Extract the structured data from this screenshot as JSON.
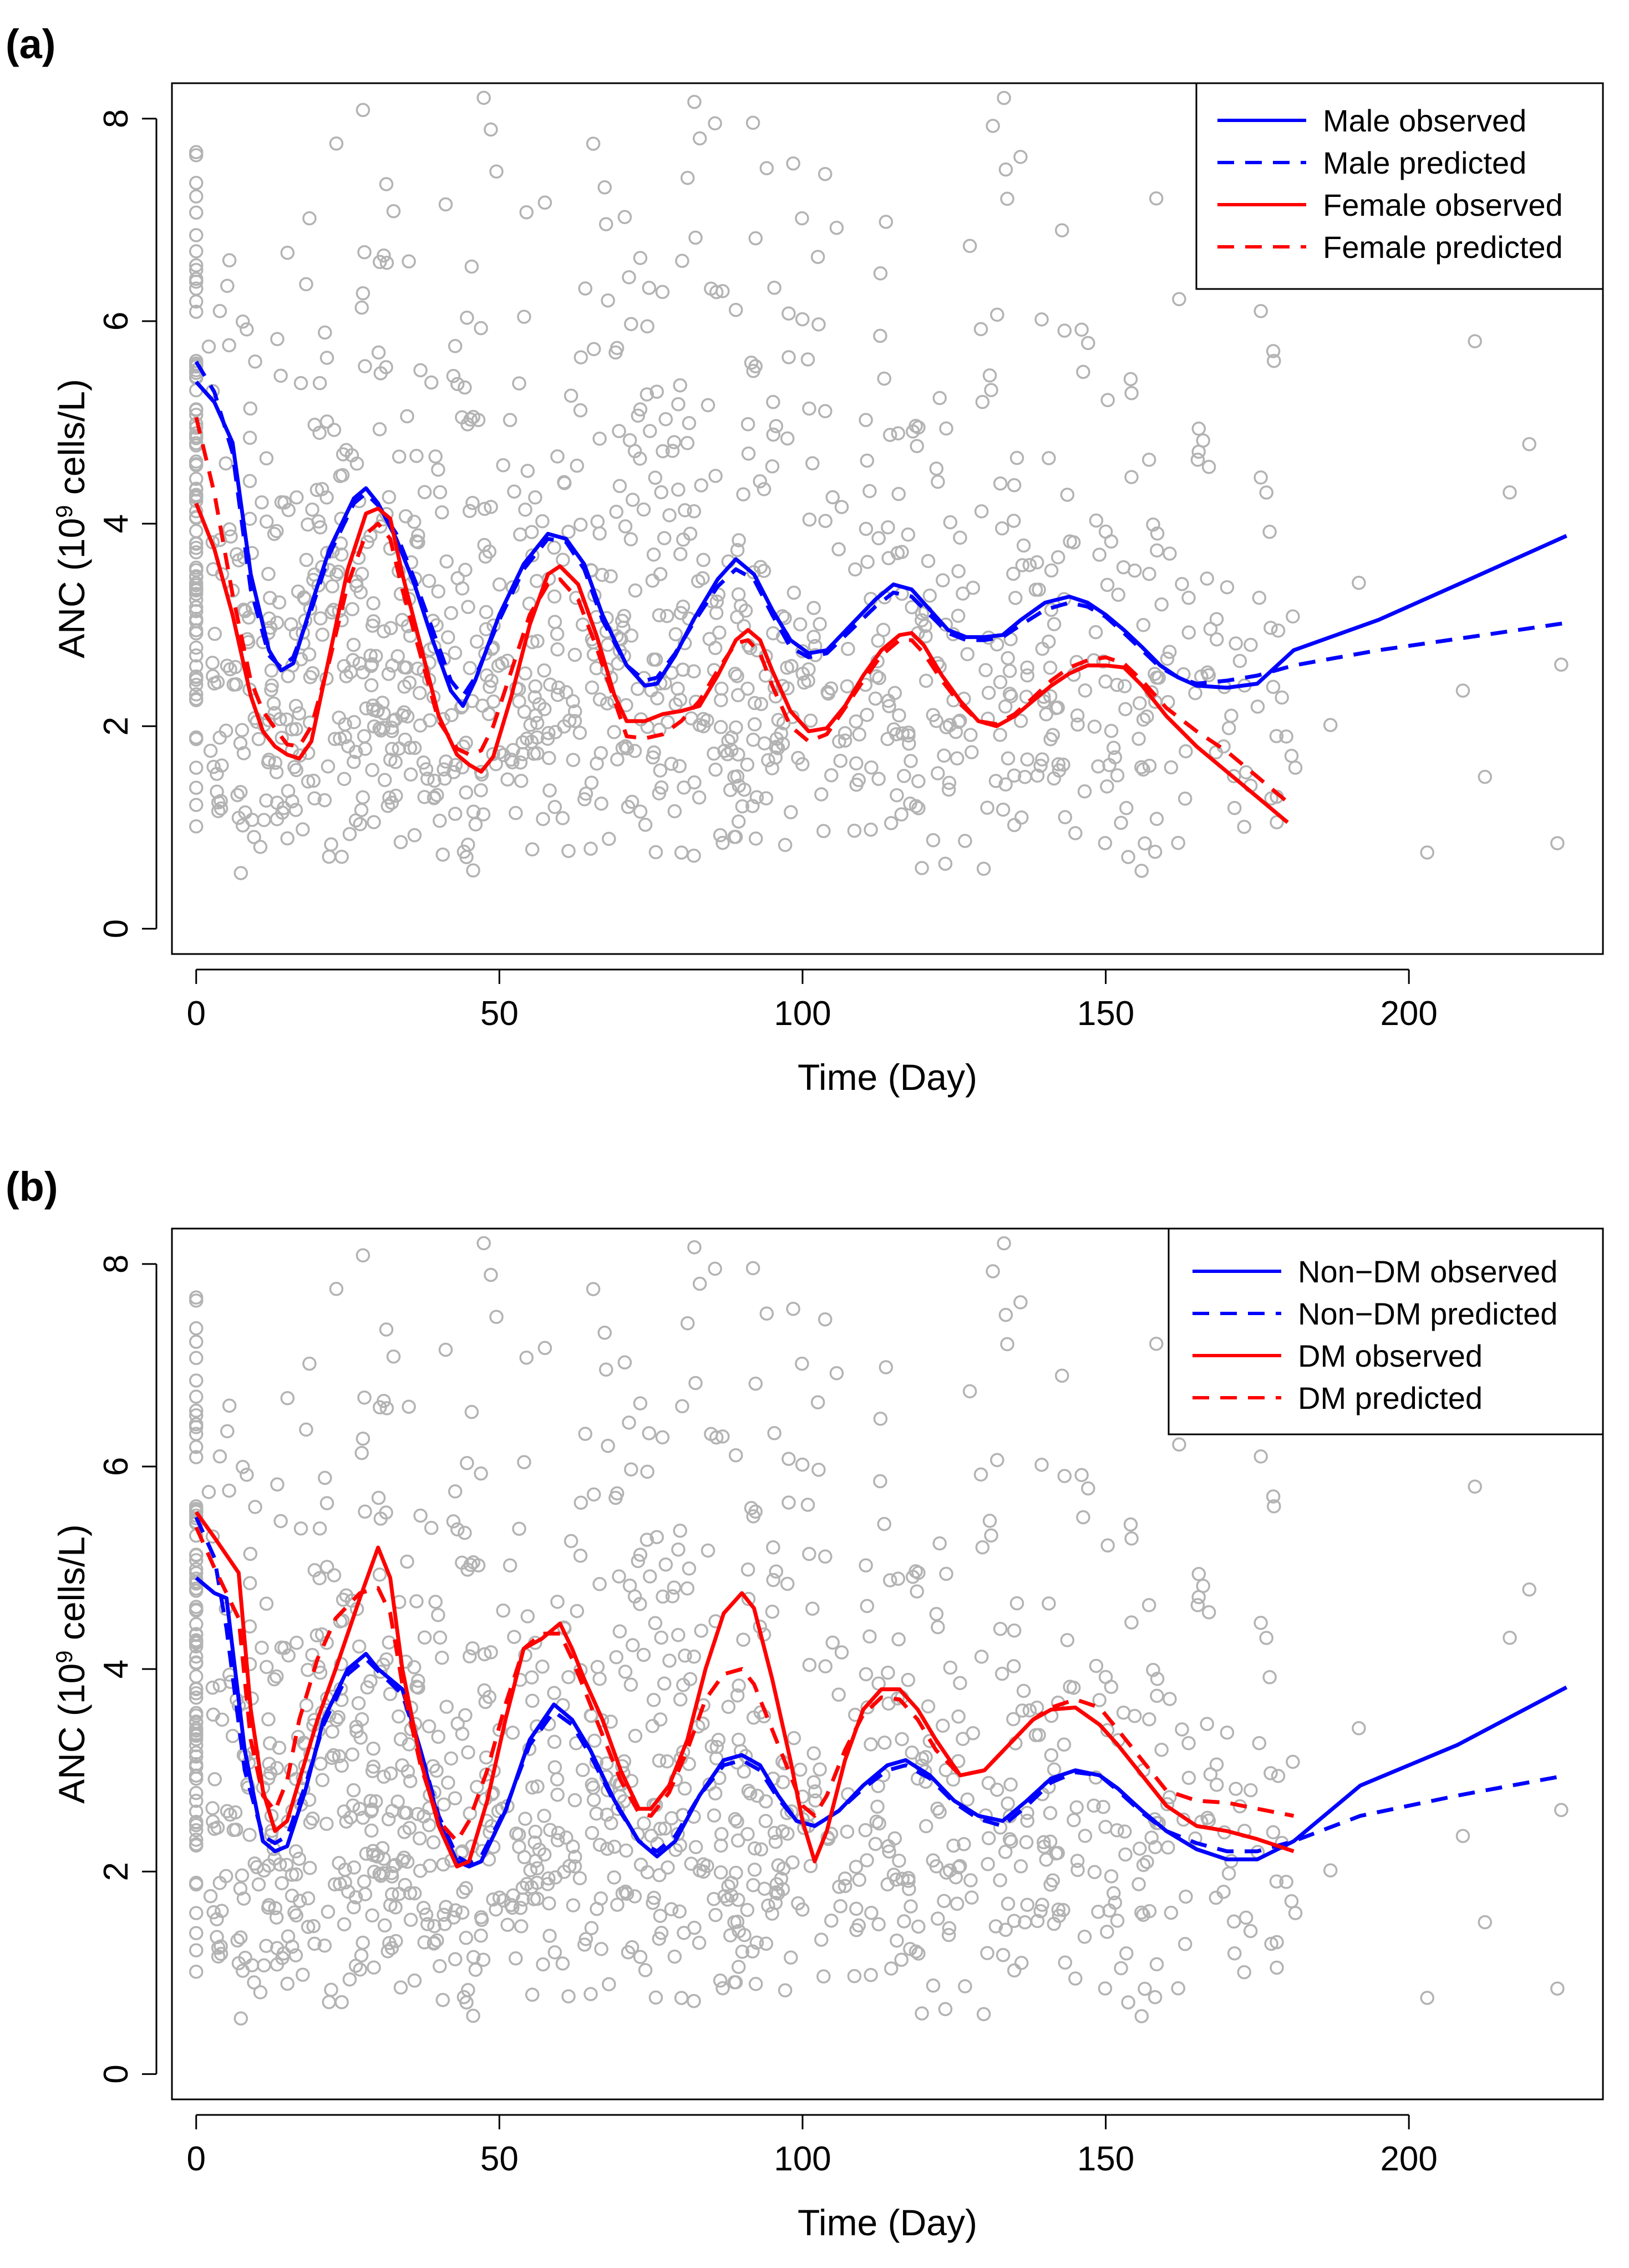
{
  "chart_data": [
    {
      "panel_label": "(a)",
      "type": "line",
      "xlabel": "Time (Day)",
      "ylabel": {
        "main": "ANC (10",
        "superscript": "9",
        "suffix": " cells/L)"
      },
      "xlim": [
        -4,
        232
      ],
      "ylim": [
        -0.25,
        8.35
      ],
      "xticks": [
        0,
        50,
        100,
        150,
        200
      ],
      "yticks": [
        0,
        2,
        4,
        6,
        8
      ],
      "legend_position": "top-right",
      "series": [
        {
          "name": "Male observed",
          "color": "#0000ff",
          "dash": "solid",
          "x": [
            0,
            3,
            6,
            9,
            12,
            14,
            16,
            19,
            22,
            26,
            28,
            30,
            33,
            36,
            39,
            42,
            44,
            46,
            50,
            54,
            58,
            61,
            64,
            67,
            71,
            74,
            76,
            79,
            82,
            86,
            89,
            92,
            95,
            98,
            101,
            104,
            108,
            112,
            115,
            118,
            121,
            124,
            127,
            130,
            133,
            136,
            140,
            144,
            147,
            150,
            153,
            156,
            159,
            162,
            165,
            170,
            175,
            181,
            195,
            210,
            226
          ],
          "y": [
            5.4,
            5.2,
            4.8,
            3.5,
            2.75,
            2.55,
            2.62,
            3.2,
            3.75,
            4.25,
            4.35,
            4.2,
            3.85,
            3.4,
            2.85,
            2.35,
            2.2,
            2.45,
            3.1,
            3.6,
            3.9,
            3.85,
            3.6,
            3.1,
            2.6,
            2.4,
            2.42,
            2.7,
            3.05,
            3.45,
            3.65,
            3.5,
            3.15,
            2.85,
            2.72,
            2.75,
            3.0,
            3.25,
            3.4,
            3.35,
            3.15,
            2.95,
            2.88,
            2.88,
            2.9,
            3.05,
            3.22,
            3.28,
            3.22,
            3.1,
            2.95,
            2.78,
            2.6,
            2.48,
            2.4,
            2.38,
            2.42,
            2.75,
            3.05,
            3.45,
            3.88
          ]
        },
        {
          "name": "Male predicted",
          "color": "#0000ff",
          "dash": "dashed",
          "x": [
            0,
            3,
            6,
            9,
            12,
            14,
            16,
            19,
            22,
            26,
            28,
            30,
            33,
            36,
            39,
            42,
            44,
            46,
            50,
            54,
            58,
            61,
            64,
            67,
            71,
            74,
            76,
            79,
            82,
            86,
            89,
            92,
            95,
            98,
            101,
            104,
            108,
            112,
            115,
            118,
            121,
            124,
            127,
            130,
            133,
            136,
            140,
            144,
            147,
            150,
            153,
            156,
            159,
            162,
            165,
            170,
            175,
            181,
            195,
            210,
            226
          ],
          "y": [
            5.6,
            5.3,
            4.7,
            3.35,
            2.7,
            2.58,
            2.68,
            3.15,
            3.7,
            4.2,
            4.3,
            4.18,
            3.9,
            3.45,
            2.95,
            2.45,
            2.3,
            2.48,
            3.05,
            3.55,
            3.85,
            3.82,
            3.55,
            3.05,
            2.6,
            2.45,
            2.48,
            2.72,
            3.02,
            3.38,
            3.55,
            3.45,
            3.1,
            2.78,
            2.68,
            2.72,
            2.95,
            3.18,
            3.32,
            3.28,
            3.1,
            2.92,
            2.85,
            2.85,
            2.88,
            3.0,
            3.15,
            3.22,
            3.18,
            3.08,
            2.92,
            2.75,
            2.58,
            2.48,
            2.42,
            2.45,
            2.5,
            2.6,
            2.75,
            2.88,
            3.02
          ]
        },
        {
          "name": "Female observed",
          "color": "#ff0000",
          "dash": "solid",
          "x": [
            0,
            3,
            6,
            9,
            11,
            13,
            15,
            17,
            19,
            22,
            25,
            28,
            30,
            32,
            34,
            37,
            40,
            43,
            45,
            47,
            49,
            52,
            55,
            58,
            60,
            63,
            66,
            69,
            71,
            74,
            77,
            80,
            83,
            86,
            89,
            91,
            93,
            95,
            98,
            101,
            104,
            107,
            110,
            113,
            116,
            118,
            120,
            123,
            126,
            129,
            132,
            135,
            138,
            141,
            144,
            147,
            150,
            153,
            156,
            160,
            165,
            170,
            175,
            180
          ],
          "y": [
            4.2,
            3.75,
            3.1,
            2.3,
            1.95,
            1.8,
            1.72,
            1.68,
            1.85,
            2.7,
            3.55,
            4.1,
            4.15,
            4.05,
            3.5,
            2.8,
            2.1,
            1.72,
            1.62,
            1.55,
            1.7,
            2.3,
            3.0,
            3.5,
            3.58,
            3.4,
            2.9,
            2.3,
            2.05,
            2.05,
            2.12,
            2.15,
            2.2,
            2.5,
            2.85,
            2.95,
            2.85,
            2.55,
            2.15,
            1.95,
            1.98,
            2.2,
            2.5,
            2.75,
            2.9,
            2.92,
            2.8,
            2.5,
            2.25,
            2.05,
            2.0,
            2.1,
            2.25,
            2.4,
            2.52,
            2.6,
            2.6,
            2.58,
            2.4,
            2.1,
            1.8,
            1.55,
            1.3,
            1.05
          ]
        },
        {
          "name": "Female predicted",
          "color": "#ff0000",
          "dash": "dashed",
          "x": [
            0,
            3,
            6,
            9,
            11,
            13,
            15,
            17,
            19,
            22,
            25,
            28,
            30,
            32,
            34,
            37,
            40,
            43,
            45,
            47,
            49,
            52,
            55,
            58,
            60,
            63,
            66,
            69,
            71,
            74,
            77,
            80,
            83,
            86,
            89,
            91,
            93,
            95,
            98,
            101,
            104,
            107,
            110,
            113,
            116,
            118,
            120,
            123,
            126,
            129,
            132,
            135,
            138,
            141,
            144,
            147,
            150,
            153,
            156,
            160,
            165,
            170,
            175,
            180
          ],
          "y": [
            5.05,
            4.3,
            3.3,
            2.45,
            2.15,
            1.98,
            1.82,
            1.8,
            2.0,
            2.65,
            3.4,
            3.9,
            4.0,
            3.85,
            3.35,
            2.7,
            2.05,
            1.78,
            1.72,
            1.76,
            2.0,
            2.55,
            3.1,
            3.4,
            3.45,
            3.25,
            2.78,
            2.25,
            1.9,
            1.88,
            1.92,
            2.05,
            2.25,
            2.55,
            2.82,
            2.85,
            2.72,
            2.4,
            2.0,
            1.85,
            1.92,
            2.18,
            2.45,
            2.7,
            2.85,
            2.85,
            2.72,
            2.45,
            2.22,
            2.05,
            2.02,
            2.12,
            2.28,
            2.45,
            2.58,
            2.65,
            2.68,
            2.62,
            2.45,
            2.18,
            1.95,
            1.75,
            1.5,
            1.25
          ]
        }
      ]
    },
    {
      "panel_label": "(b)",
      "type": "line",
      "xlabel": "Time (Day)",
      "ylabel": {
        "main": "ANC (10",
        "superscript": "9",
        "suffix": " cells/L)"
      },
      "xlim": [
        -4,
        232
      ],
      "ylim": [
        -0.25,
        8.35
      ],
      "xticks": [
        0,
        50,
        100,
        150,
        200
      ],
      "yticks": [
        0,
        2,
        4,
        6,
        8
      ],
      "legend_position": "top-right",
      "series": [
        {
          "name": "Non−DM observed",
          "color": "#0000ff",
          "dash": "solid",
          "x": [
            0,
            3,
            5,
            8,
            11,
            13,
            15,
            18,
            21,
            25,
            28,
            30,
            34,
            37,
            40,
            43,
            45,
            47,
            51,
            55,
            59,
            62,
            65,
            69,
            73,
            76,
            79,
            83,
            87,
            90,
            93,
            96,
            99,
            102,
            106,
            110,
            114,
            117,
            121,
            125,
            129,
            133,
            137,
            141,
            145,
            149,
            152,
            156,
            160,
            165,
            170,
            175,
            181,
            192,
            208,
            226
          ],
          "y": [
            4.9,
            4.75,
            4.7,
            3.2,
            2.3,
            2.2,
            2.25,
            2.8,
            3.5,
            4.0,
            4.15,
            4.0,
            3.8,
            3.2,
            2.5,
            2.1,
            2.05,
            2.1,
            2.6,
            3.3,
            3.65,
            3.5,
            3.2,
            2.7,
            2.3,
            2.15,
            2.3,
            2.75,
            3.1,
            3.15,
            3.05,
            2.75,
            2.5,
            2.45,
            2.6,
            2.85,
            3.05,
            3.1,
            2.95,
            2.7,
            2.55,
            2.5,
            2.7,
            2.92,
            3.0,
            2.95,
            2.82,
            2.6,
            2.4,
            2.22,
            2.12,
            2.12,
            2.3,
            2.85,
            3.25,
            3.82
          ]
        },
        {
          "name": "Non−DM predicted",
          "color": "#0000ff",
          "dash": "dashed",
          "x": [
            0,
            3,
            5,
            8,
            11,
            13,
            15,
            18,
            21,
            25,
            28,
            30,
            34,
            37,
            40,
            43,
            45,
            47,
            51,
            55,
            59,
            62,
            65,
            69,
            73,
            76,
            79,
            83,
            87,
            90,
            93,
            96,
            99,
            102,
            106,
            110,
            114,
            117,
            121,
            125,
            129,
            133,
            137,
            141,
            145,
            149,
            152,
            156,
            160,
            165,
            170,
            175,
            181,
            192,
            208,
            226
          ],
          "y": [
            5.5,
            5.1,
            4.4,
            3.0,
            2.35,
            2.28,
            2.35,
            2.85,
            3.45,
            3.95,
            4.1,
            3.98,
            3.75,
            3.2,
            2.55,
            2.15,
            2.08,
            2.15,
            2.62,
            3.25,
            3.58,
            3.45,
            3.15,
            2.68,
            2.3,
            2.2,
            2.35,
            2.75,
            3.05,
            3.1,
            3.0,
            2.72,
            2.5,
            2.45,
            2.6,
            2.82,
            3.0,
            3.05,
            2.92,
            2.68,
            2.52,
            2.45,
            2.65,
            2.88,
            2.98,
            2.95,
            2.8,
            2.58,
            2.4,
            2.28,
            2.2,
            2.2,
            2.3,
            2.55,
            2.75,
            2.95
          ]
        },
        {
          "name": "DM observed",
          "color": "#ff0000",
          "dash": "solid",
          "x": [
            0,
            3,
            7,
            9,
            11,
            13,
            15,
            17,
            20,
            23,
            27,
            30,
            32,
            34,
            37,
            40,
            43,
            45,
            48,
            51,
            54,
            57,
            60,
            62,
            64,
            67,
            70,
            73,
            75,
            78,
            81,
            84,
            87,
            90,
            92,
            95,
            98,
            100,
            102,
            104,
            107,
            110,
            113,
            116,
            119,
            122,
            126,
            130,
            134,
            138,
            141,
            145,
            149,
            152,
            156,
            160,
            165,
            170,
            175,
            181
          ],
          "y": [
            5.55,
            5.3,
            4.95,
            3.6,
            2.8,
            2.4,
            2.5,
            2.9,
            3.5,
            4.0,
            4.7,
            5.2,
            4.9,
            4.0,
            3.1,
            2.45,
            2.05,
            2.1,
            2.7,
            3.5,
            4.2,
            4.3,
            4.45,
            4.2,
            3.9,
            3.5,
            3.0,
            2.62,
            2.62,
            2.85,
            3.3,
            4.0,
            4.55,
            4.75,
            4.6,
            3.9,
            3.1,
            2.5,
            2.1,
            2.4,
            3.1,
            3.6,
            3.8,
            3.8,
            3.6,
            3.3,
            2.95,
            3.0,
            3.25,
            3.5,
            3.6,
            3.62,
            3.45,
            3.25,
            2.95,
            2.65,
            2.45,
            2.4,
            2.32,
            2.2
          ]
        },
        {
          "name": "DM predicted",
          "color": "#ff0000",
          "dash": "dashed",
          "x": [
            0,
            3,
            7,
            9,
            11,
            13,
            15,
            17,
            20,
            23,
            27,
            30,
            32,
            34,
            37,
            40,
            43,
            45,
            48,
            51,
            54,
            57,
            60,
            62,
            64,
            67,
            70,
            73,
            75,
            78,
            81,
            84,
            87,
            90,
            92,
            95,
            98,
            100,
            102,
            104,
            107,
            110,
            113,
            116,
            119,
            122,
            126,
            130,
            134,
            138,
            141,
            145,
            149,
            152,
            156,
            160,
            165,
            170,
            175,
            181
          ],
          "y": [
            5.4,
            5.0,
            4.5,
            3.3,
            2.75,
            2.6,
            2.9,
            3.5,
            4.1,
            4.5,
            4.75,
            4.8,
            4.55,
            3.85,
            3.05,
            2.5,
            2.3,
            2.5,
            3.0,
            3.65,
            4.2,
            4.35,
            4.35,
            4.1,
            3.8,
            3.35,
            2.9,
            2.58,
            2.55,
            2.78,
            3.2,
            3.7,
            3.95,
            4.0,
            3.85,
            3.4,
            2.95,
            2.65,
            2.55,
            2.75,
            3.2,
            3.55,
            3.72,
            3.7,
            3.5,
            3.2,
            2.95,
            3.0,
            3.25,
            3.5,
            3.62,
            3.7,
            3.62,
            3.4,
            3.1,
            2.8,
            2.7,
            2.68,
            2.62,
            2.55
          ]
        }
      ]
    }
  ]
}
